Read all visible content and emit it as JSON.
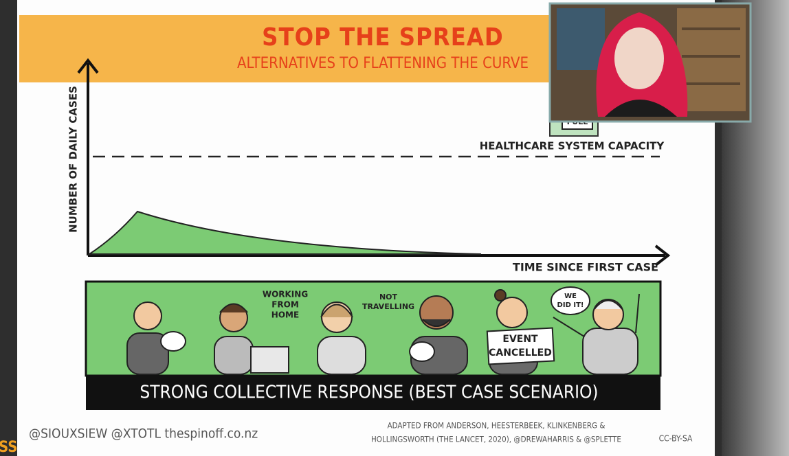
{
  "slide": {
    "title": "STOP THE SPREAD",
    "subtitle": "ALTERNATIVES TO FLATTENING THE CURVE",
    "y_axis_label": "NUMBER OF DAILY CASES",
    "x_axis_label": "TIME SINCE FIRST CASE",
    "capacity_label": "HEALTHCARE SYSTEM CAPACITY",
    "hospital_sign": "FULL",
    "panel": {
      "bubbles": [
        {
          "lines": [
            "WORKING",
            "FROM",
            "HOME"
          ]
        },
        {
          "lines": [
            "NOT",
            "TRAVELLING"
          ]
        },
        {
          "lines": [
            "WE",
            "DID IT!"
          ]
        }
      ],
      "sign": {
        "lines": [
          "EVENT",
          "CANCELLED"
        ]
      },
      "banner": "STRONG COLLECTIVE RESPONSE (BEST CASE SCENARIO)"
    },
    "footer": {
      "handles": "@SIOUXSIEW @XTOTL thespinoff.co.nz",
      "attribution": [
        "ADAPTED FROM ANDERSON, HEESTERBEEK, KLINKENBERG &",
        "HOLLINGSWORTH (THE LANCET, 2020), @DREWAHARRIS & @SPLETTE"
      ],
      "license": "CC-BY-SA"
    }
  },
  "edge_text": "SS"
}
